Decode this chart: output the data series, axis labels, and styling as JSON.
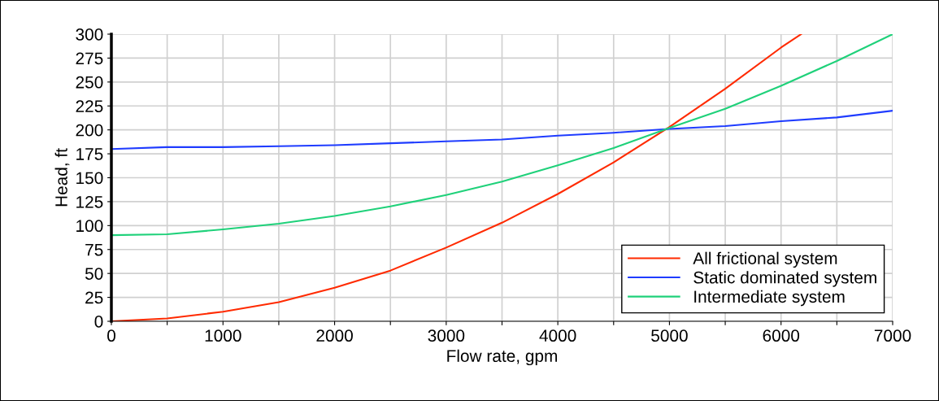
{
  "chart_data": {
    "type": "line",
    "xlabel": "Flow rate, gpm",
    "ylabel": "Head, ft",
    "xlim": [
      0,
      7000
    ],
    "ylim": [
      0,
      300
    ],
    "xticks": [
      0,
      {
        "value": 500,
        "label": null
      },
      1000,
      {
        "value": 1500,
        "label": null
      },
      2000,
      {
        "value": 2500,
        "label": null
      },
      3000,
      {
        "value": 3500,
        "label": null
      },
      4000,
      {
        "value": 4500,
        "label": null
      },
      5000,
      {
        "value": 5500,
        "label": null
      },
      6000,
      {
        "value": 6500,
        "label": null
      },
      7000
    ],
    "yticks": [
      0,
      25,
      50,
      75,
      100,
      125,
      150,
      175,
      200,
      225,
      250,
      275,
      300
    ],
    "grid": true,
    "legend": "bottom right",
    "marker": "none",
    "line_style": "solid",
    "series": [
      {
        "name": "All frictional system",
        "color": "#ff2a00",
        "x": [
          0,
          500,
          1000,
          1500,
          2000,
          2500,
          3000,
          3500,
          4000,
          4500,
          5000,
          5500,
          6000,
          6180
        ],
        "values": [
          0,
          3,
          10,
          20,
          35,
          53,
          77,
          103,
          133,
          166,
          203,
          243,
          286,
          300
        ]
      },
      {
        "name": "Static dominated system",
        "color": "#1f3cff",
        "x": [
          0,
          500,
          1000,
          1500,
          2000,
          2500,
          3000,
          3500,
          4000,
          4500,
          5000,
          5500,
          6000,
          6500,
          7000
        ],
        "values": [
          180,
          182,
          182,
          183,
          184,
          186,
          188,
          190,
          194,
          197,
          201,
          204,
          209,
          213,
          220
        ]
      },
      {
        "name": "Intermediate system",
        "color": "#1fd17a",
        "x": [
          0,
          500,
          1000,
          1500,
          2000,
          2500,
          3000,
          3500,
          4000,
          4500,
          5000,
          5500,
          6000,
          6500,
          7000
        ],
        "values": [
          90,
          91,
          96,
          102,
          110,
          120,
          132,
          146,
          163,
          181,
          202,
          222,
          246,
          272,
          300
        ]
      }
    ]
  }
}
